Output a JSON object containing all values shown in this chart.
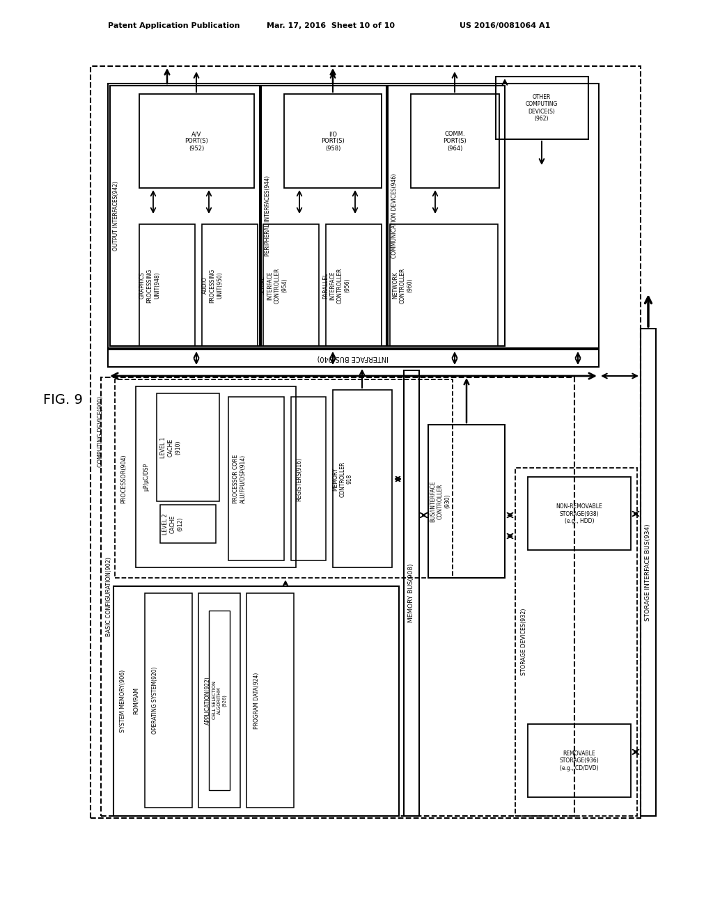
{
  "bg_color": "#ffffff",
  "header_left": "Patent Application Publication",
  "header_center": "Mar. 17, 2016  Sheet 10 of 10",
  "header_right": "US 2016/0081064 A1",
  "fig_label": "FIG. 9"
}
